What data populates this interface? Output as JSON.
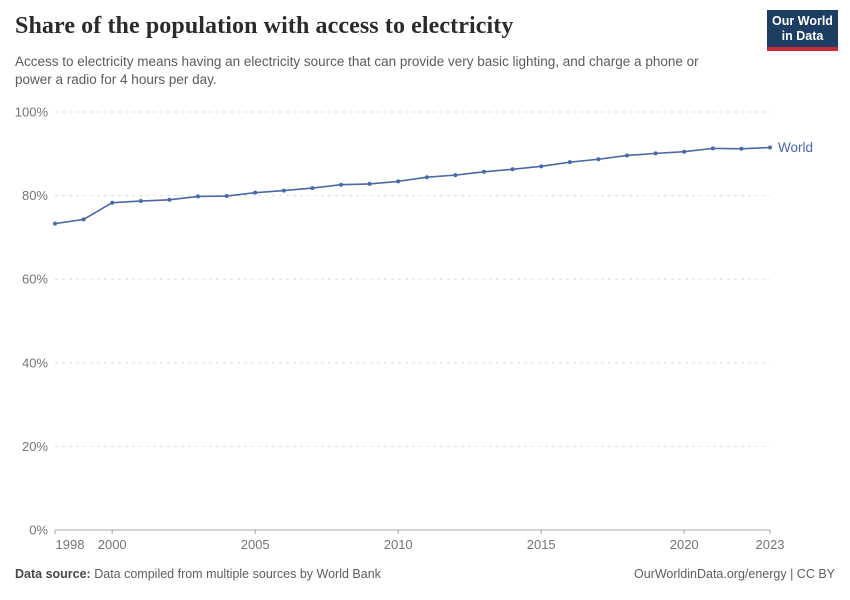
{
  "header": {
    "title": "Share of the population with access to electricity",
    "subtitle": "Access to electricity means having an electricity source that can provide very basic lighting, and charge a phone or power a radio for 4 hours per day."
  },
  "logo": {
    "line1": "Our World",
    "line2": "in Data",
    "bg_color": "#1d3d63",
    "accent_color": "#cc2936"
  },
  "chart_data": {
    "type": "line",
    "title": "Share of the population with access to electricity",
    "x": [
      1998,
      1999,
      2000,
      2001,
      2002,
      2003,
      2004,
      2005,
      2006,
      2007,
      2008,
      2009,
      2010,
      2011,
      2012,
      2013,
      2014,
      2015,
      2016,
      2017,
      2018,
      2019,
      2020,
      2021,
      2022,
      2023
    ],
    "series": [
      {
        "name": "World",
        "color": "#4a68a5",
        "values": [
          73.3,
          74.3,
          78.3,
          78.7,
          79.0,
          79.8,
          79.9,
          80.7,
          81.2,
          81.8,
          82.6,
          82.8,
          83.4,
          84.4,
          84.9,
          85.7,
          86.3,
          87.0,
          88.0,
          88.7,
          89.6,
          90.1,
          90.5,
          91.3,
          91.2,
          91.5
        ]
      }
    ],
    "xlabel": "",
    "ylabel": "",
    "xlim": [
      1998,
      2023
    ],
    "ylim": [
      0,
      100
    ],
    "xticks": [
      1998,
      2000,
      2005,
      2010,
      2015,
      2020,
      2023
    ],
    "yticks": [
      0,
      20,
      40,
      60,
      80,
      100
    ],
    "ytick_suffix": "%",
    "grid": true,
    "legend_position": "end-of-line",
    "colors": {
      "gridline": "#dddddd",
      "axis": "#a8a8a8",
      "tick_label": "#757575"
    }
  },
  "footer": {
    "source_label": "Data source:",
    "source_text": "Data compiled from multiple sources by World Bank",
    "link_text": "OurWorldinData.org/energy | CC BY"
  }
}
